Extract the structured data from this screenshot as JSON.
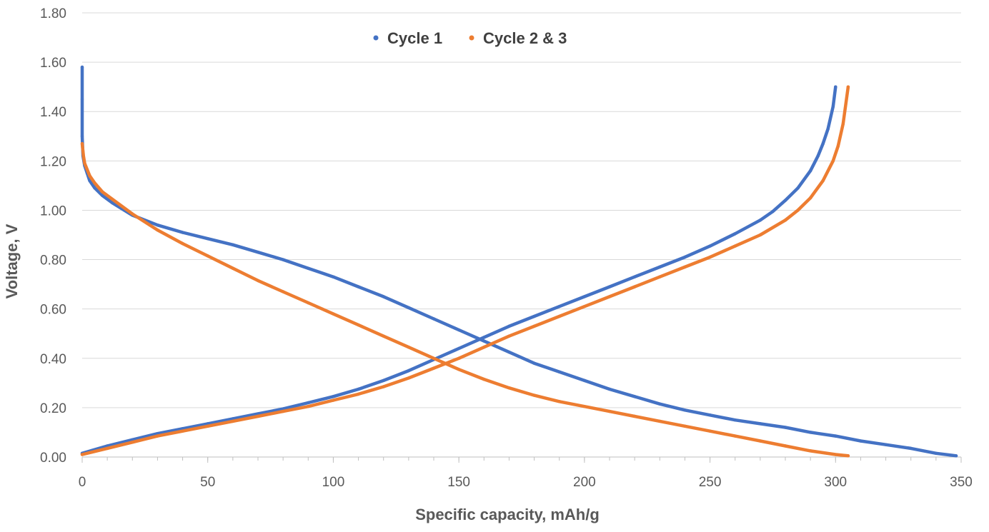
{
  "chart_data": {
    "type": "scatter",
    "title": "",
    "xlabel": "Specific capacity, mAh/g",
    "ylabel": "Voltage, V",
    "xlim": [
      0,
      350
    ],
    "ylim": [
      0,
      1.8
    ],
    "x_ticks": [
      "0",
      "50",
      "100",
      "150",
      "200",
      "250",
      "300",
      "350"
    ],
    "y_ticks": [
      "0.00",
      "0.20",
      "0.40",
      "0.60",
      "0.80",
      "1.00",
      "1.20",
      "1.40",
      "1.60",
      "1.80"
    ],
    "grid": "horizontal",
    "legend_position": "top-center",
    "series": [
      {
        "name": "Cycle 1",
        "color": "#4472C4",
        "curves": [
          {
            "x": [
              0,
              0,
              0,
              0.3,
              1,
              2,
              3,
              5,
              8,
              12,
              20,
              30,
              40,
              50,
              60,
              70,
              80,
              90,
              100,
              110,
              120,
              130,
              140,
              150,
              160,
              170,
              180,
              190,
              200,
              210,
              220,
              230,
              240,
              250,
              260,
              270,
              280,
              290,
              300,
              310,
              320,
              330,
              340,
              348
            ],
            "y": [
              1.58,
              1.45,
              1.3,
              1.22,
              1.18,
              1.15,
              1.12,
              1.09,
              1.06,
              1.03,
              0.98,
              0.94,
              0.91,
              0.885,
              0.86,
              0.83,
              0.8,
              0.765,
              0.73,
              0.69,
              0.65,
              0.605,
              0.56,
              0.515,
              0.47,
              0.425,
              0.38,
              0.345,
              0.31,
              0.275,
              0.245,
              0.215,
              0.19,
              0.17,
              0.15,
              0.135,
              0.12,
              0.1,
              0.085,
              0.065,
              0.05,
              0.035,
              0.015,
              0.005
            ]
          },
          {
            "x": [
              0,
              10,
              20,
              30,
              40,
              50,
              60,
              70,
              80,
              90,
              100,
              110,
              120,
              130,
              140,
              150,
              160,
              170,
              180,
              190,
              200,
              210,
              220,
              230,
              240,
              250,
              260,
              270,
              275,
              280,
              285,
              290,
              293,
              295,
              297,
              299,
              300
            ],
            "y": [
              0.015,
              0.045,
              0.07,
              0.095,
              0.115,
              0.135,
              0.155,
              0.175,
              0.195,
              0.22,
              0.245,
              0.275,
              0.31,
              0.35,
              0.395,
              0.44,
              0.485,
              0.53,
              0.57,
              0.61,
              0.65,
              0.69,
              0.73,
              0.77,
              0.81,
              0.855,
              0.905,
              0.96,
              0.995,
              1.04,
              1.09,
              1.16,
              1.22,
              1.27,
              1.33,
              1.42,
              1.5
            ]
          }
        ]
      },
      {
        "name": "Cycle 2 & 3",
        "color": "#ED7D31",
        "curves": [
          {
            "x": [
              0,
              0.5,
              1,
              3,
              5,
              8,
              12,
              20,
              30,
              40,
              50,
              60,
              70,
              80,
              90,
              100,
              110,
              120,
              130,
              140,
              150,
              160,
              170,
              180,
              190,
              200,
              210,
              220,
              230,
              240,
              250,
              260,
              270,
              280,
              290,
              300,
              305
            ],
            "y": [
              1.27,
              1.22,
              1.19,
              1.14,
              1.11,
              1.075,
              1.045,
              0.985,
              0.92,
              0.865,
              0.815,
              0.765,
              0.715,
              0.67,
              0.625,
              0.58,
              0.535,
              0.49,
              0.445,
              0.4,
              0.355,
              0.315,
              0.28,
              0.25,
              0.225,
              0.205,
              0.185,
              0.165,
              0.145,
              0.125,
              0.105,
              0.085,
              0.065,
              0.045,
              0.025,
              0.01,
              0.005
            ]
          },
          {
            "x": [
              0,
              10,
              20,
              30,
              40,
              50,
              60,
              70,
              80,
              90,
              100,
              110,
              120,
              130,
              140,
              150,
              160,
              170,
              180,
              190,
              200,
              210,
              220,
              230,
              240,
              250,
              260,
              270,
              280,
              285,
              290,
              295,
              299,
              301,
              303,
              305
            ],
            "y": [
              0.01,
              0.035,
              0.06,
              0.085,
              0.105,
              0.125,
              0.145,
              0.165,
              0.185,
              0.205,
              0.23,
              0.255,
              0.285,
              0.32,
              0.36,
              0.4,
              0.445,
              0.49,
              0.53,
              0.57,
              0.61,
              0.65,
              0.69,
              0.73,
              0.77,
              0.81,
              0.855,
              0.9,
              0.96,
              1.0,
              1.05,
              1.12,
              1.2,
              1.26,
              1.35,
              1.5
            ]
          }
        ]
      }
    ]
  }
}
